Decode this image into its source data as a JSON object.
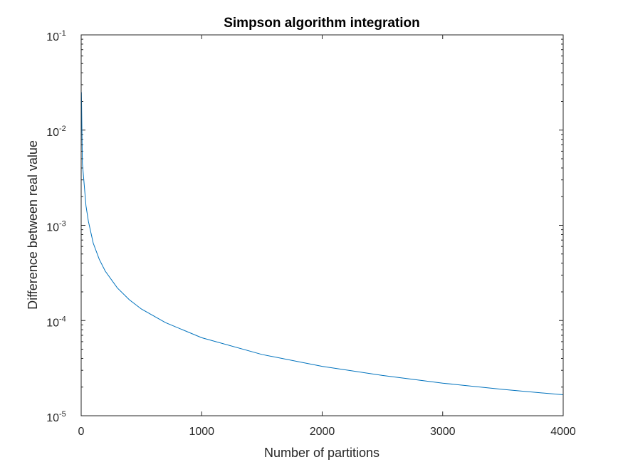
{
  "chart_data": {
    "type": "line",
    "title": "Simpson algorithm integration",
    "xlabel": "Number of partitions",
    "ylabel": "Difference between real value",
    "xlim": [
      0,
      4000
    ],
    "ylim": [
      1e-05,
      0.1
    ],
    "yscale": "log",
    "grid": false,
    "legend": "none",
    "x_ticks": [
      0,
      1000,
      2000,
      3000,
      4000
    ],
    "x_tick_labels": [
      "0",
      "1000",
      "2000",
      "3000",
      "4000"
    ],
    "y_ticks": [
      1e-05,
      0.0001,
      0.001,
      0.01,
      0.1
    ],
    "y_tick_labels": [
      {
        "base": "10",
        "exp": "-5"
      },
      {
        "base": "10",
        "exp": "-4"
      },
      {
        "base": "10",
        "exp": "-3"
      },
      {
        "base": "10",
        "exp": "-2"
      },
      {
        "base": "10",
        "exp": "-1"
      }
    ],
    "colors": {
      "line": "#0072BD",
      "axes": "#262626"
    },
    "series": [
      {
        "x": [
          2,
          10,
          20,
          40,
          60,
          100,
          150,
          200,
          300,
          400,
          500,
          700,
          1000,
          1500,
          2000,
          2500,
          3000,
          3500,
          4000
        ],
        "y": [
          0.025,
          0.0045,
          0.0032,
          0.0016,
          0.0011,
          0.00065,
          0.00044,
          0.00033,
          0.00022,
          0.000165,
          0.000132,
          9.5e-05,
          6.6e-05,
          4.4e-05,
          3.3e-05,
          2.65e-05,
          2.2e-05,
          1.89e-05,
          1.66e-05
        ]
      }
    ]
  }
}
